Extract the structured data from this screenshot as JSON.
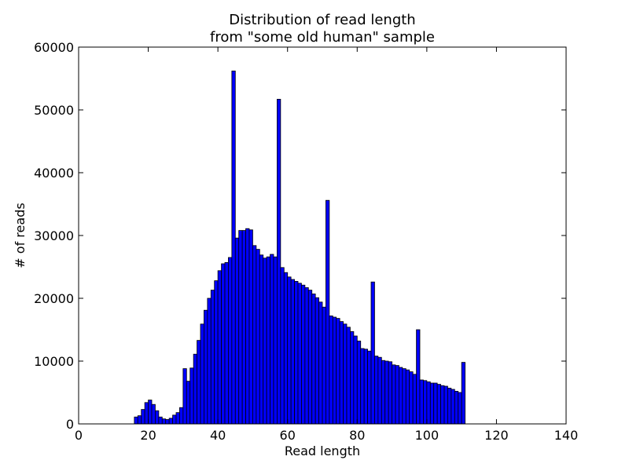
{
  "chart_data": {
    "type": "bar",
    "title": "Distribution of read length",
    "subtitle": "from \"some old human\" sample",
    "xlabel": "Read length",
    "ylabel": "# of reads",
    "xlim": [
      0,
      140
    ],
    "ylim": [
      0,
      60000
    ],
    "x_ticks": [
      0,
      20,
      40,
      60,
      80,
      100,
      120,
      140
    ],
    "y_ticks": [
      0,
      10000,
      20000,
      30000,
      40000,
      50000,
      60000
    ],
    "bin_width": 1,
    "grid": false,
    "bar_color": "#0000ff",
    "bar_edge_color": "#000000",
    "bins": [
      {
        "x": 16,
        "y": 1100
      },
      {
        "x": 17,
        "y": 1300
      },
      {
        "x": 18,
        "y": 2300
      },
      {
        "x": 19,
        "y": 3400
      },
      {
        "x": 20,
        "y": 3800
      },
      {
        "x": 21,
        "y": 3100
      },
      {
        "x": 22,
        "y": 2100
      },
      {
        "x": 23,
        "y": 1100
      },
      {
        "x": 24,
        "y": 800
      },
      {
        "x": 25,
        "y": 700
      },
      {
        "x": 26,
        "y": 900
      },
      {
        "x": 27,
        "y": 1400
      },
      {
        "x": 28,
        "y": 1800
      },
      {
        "x": 29,
        "y": 2600
      },
      {
        "x": 30,
        "y": 8800
      },
      {
        "x": 31,
        "y": 6800
      },
      {
        "x": 32,
        "y": 8900
      },
      {
        "x": 33,
        "y": 11100
      },
      {
        "x": 34,
        "y": 13300
      },
      {
        "x": 35,
        "y": 15900
      },
      {
        "x": 36,
        "y": 18100
      },
      {
        "x": 37,
        "y": 20000
      },
      {
        "x": 38,
        "y": 21300
      },
      {
        "x": 39,
        "y": 22800
      },
      {
        "x": 40,
        "y": 24400
      },
      {
        "x": 41,
        "y": 25500
      },
      {
        "x": 42,
        "y": 25700
      },
      {
        "x": 43,
        "y": 26500
      },
      {
        "x": 44,
        "y": 56200
      },
      {
        "x": 45,
        "y": 29600
      },
      {
        "x": 46,
        "y": 30800
      },
      {
        "x": 47,
        "y": 30800
      },
      {
        "x": 48,
        "y": 31100
      },
      {
        "x": 49,
        "y": 30900
      },
      {
        "x": 50,
        "y": 28400
      },
      {
        "x": 51,
        "y": 27800
      },
      {
        "x": 52,
        "y": 26900
      },
      {
        "x": 53,
        "y": 26400
      },
      {
        "x": 54,
        "y": 26600
      },
      {
        "x": 55,
        "y": 27000
      },
      {
        "x": 56,
        "y": 26600
      },
      {
        "x": 57,
        "y": 51700
      },
      {
        "x": 58,
        "y": 24900
      },
      {
        "x": 59,
        "y": 24100
      },
      {
        "x": 60,
        "y": 23400
      },
      {
        "x": 61,
        "y": 23000
      },
      {
        "x": 62,
        "y": 22700
      },
      {
        "x": 63,
        "y": 22400
      },
      {
        "x": 64,
        "y": 22100
      },
      {
        "x": 65,
        "y": 21700
      },
      {
        "x": 66,
        "y": 21300
      },
      {
        "x": 67,
        "y": 20700
      },
      {
        "x": 68,
        "y": 20100
      },
      {
        "x": 69,
        "y": 19400
      },
      {
        "x": 70,
        "y": 18600
      },
      {
        "x": 71,
        "y": 35600
      },
      {
        "x": 72,
        "y": 17200
      },
      {
        "x": 73,
        "y": 17000
      },
      {
        "x": 74,
        "y": 16800
      },
      {
        "x": 75,
        "y": 16300
      },
      {
        "x": 76,
        "y": 15900
      },
      {
        "x": 77,
        "y": 15400
      },
      {
        "x": 78,
        "y": 14700
      },
      {
        "x": 79,
        "y": 14000
      },
      {
        "x": 80,
        "y": 13200
      },
      {
        "x": 81,
        "y": 12000
      },
      {
        "x": 82,
        "y": 11900
      },
      {
        "x": 83,
        "y": 11600
      },
      {
        "x": 84,
        "y": 22600
      },
      {
        "x": 85,
        "y": 10800
      },
      {
        "x": 86,
        "y": 10600
      },
      {
        "x": 87,
        "y": 10100
      },
      {
        "x": 88,
        "y": 10000
      },
      {
        "x": 89,
        "y": 9900
      },
      {
        "x": 90,
        "y": 9400
      },
      {
        "x": 91,
        "y": 9300
      },
      {
        "x": 92,
        "y": 9000
      },
      {
        "x": 93,
        "y": 8800
      },
      {
        "x": 94,
        "y": 8600
      },
      {
        "x": 95,
        "y": 8300
      },
      {
        "x": 96,
        "y": 7900
      },
      {
        "x": 97,
        "y": 15000
      },
      {
        "x": 98,
        "y": 7000
      },
      {
        "x": 99,
        "y": 6900
      },
      {
        "x": 100,
        "y": 6700
      },
      {
        "x": 101,
        "y": 6500
      },
      {
        "x": 102,
        "y": 6500
      },
      {
        "x": 103,
        "y": 6300
      },
      {
        "x": 104,
        "y": 6100
      },
      {
        "x": 105,
        "y": 6000
      },
      {
        "x": 106,
        "y": 5700
      },
      {
        "x": 107,
        "y": 5500
      },
      {
        "x": 108,
        "y": 5200
      },
      {
        "x": 109,
        "y": 5000
      },
      {
        "x": 110,
        "y": 9800
      }
    ]
  }
}
